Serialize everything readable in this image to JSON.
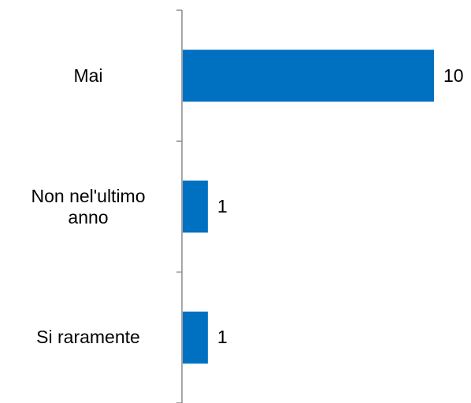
{
  "chart_data": {
    "type": "bar",
    "orientation": "horizontal",
    "categories": [
      "Mai",
      "Non nel'ultimo\nanno",
      "Si raramente"
    ],
    "values": [
      10,
      1,
      1
    ],
    "data_labels": [
      "10",
      "1",
      "1"
    ],
    "title": "",
    "xlabel": "",
    "ylabel": "",
    "xlim": [
      0,
      10
    ],
    "grid": false,
    "legend": "none",
    "bar_color": "#0070C0"
  }
}
